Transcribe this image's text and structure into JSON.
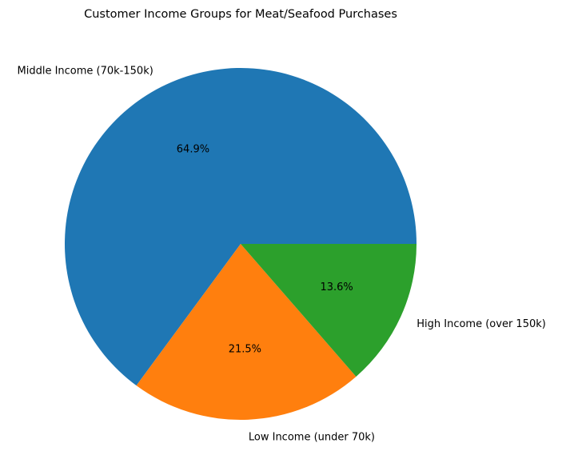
{
  "chart_data": {
    "type": "pie",
    "title": "Customer Income Groups for Meat/Seafood Purchases",
    "slices": [
      {
        "label": "Middle Income (70k-150k)",
        "percent": 64.9,
        "pct_label": "64.9%",
        "color": "#1f77b4"
      },
      {
        "label": "Low Income (under 70k)",
        "percent": 21.5,
        "pct_label": "21.5%",
        "color": "#ff7f0e"
      },
      {
        "label": "High Income (over 150k)",
        "percent": 13.6,
        "pct_label": "13.6%",
        "color": "#2ca02c"
      }
    ]
  }
}
